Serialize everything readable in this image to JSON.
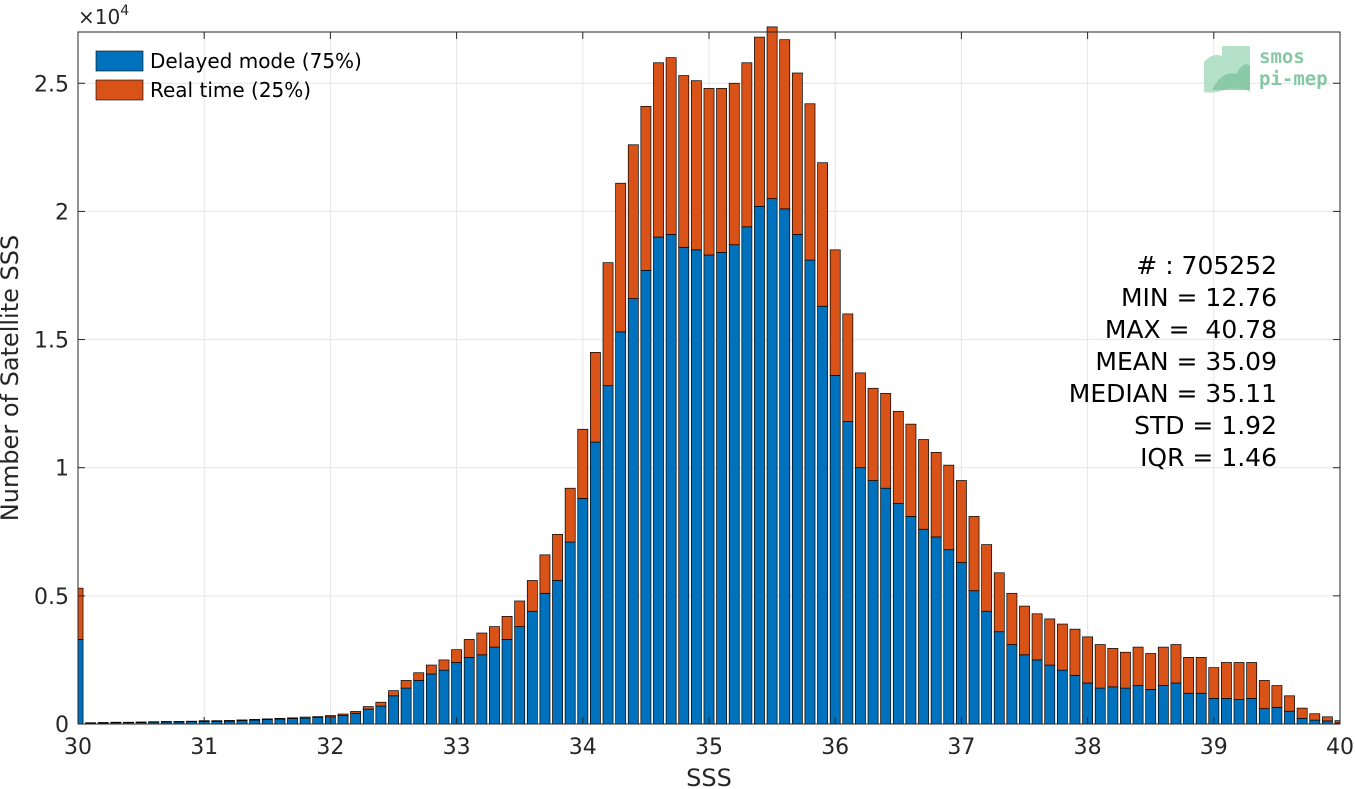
{
  "chart_data": {
    "type": "bar",
    "stacked": true,
    "xlabel": "SSS",
    "ylabel": "Number of Satellite SSS",
    "xlim": [
      30,
      40
    ],
    "ylim": [
      0,
      27000
    ],
    "x_ticks": [
      30,
      31,
      32,
      33,
      34,
      35,
      36,
      37,
      38,
      39,
      40
    ],
    "x_tick_labels": [
      "30",
      "31",
      "32",
      "33",
      "34",
      "35",
      "36",
      "37",
      "38",
      "39",
      "40"
    ],
    "y_ticks": [
      0,
      5000,
      10000,
      15000,
      20000,
      25000
    ],
    "y_tick_labels": [
      "0",
      "0.5",
      "1",
      "1.5",
      "2",
      "2.5"
    ],
    "y_multiplier_label": "×10",
    "y_multiplier_exponent": "4",
    "grid": true,
    "legend_position": "top-left",
    "bin_width": 0.1,
    "x": [
      30.0,
      30.1,
      30.2,
      30.3,
      30.4,
      30.5,
      30.6,
      30.7,
      30.8,
      30.9,
      31.0,
      31.1,
      31.2,
      31.3,
      31.4,
      31.5,
      31.6,
      31.7,
      31.8,
      31.9,
      32.0,
      32.1,
      32.2,
      32.3,
      32.4,
      32.5,
      32.6,
      32.7,
      32.8,
      32.9,
      33.0,
      33.1,
      33.2,
      33.3,
      33.4,
      33.5,
      33.6,
      33.7,
      33.8,
      33.9,
      34.0,
      34.1,
      34.2,
      34.3,
      34.4,
      34.5,
      34.6,
      34.7,
      34.8,
      34.9,
      35.0,
      35.1,
      35.2,
      35.3,
      35.4,
      35.5,
      35.6,
      35.7,
      35.8,
      35.9,
      36.0,
      36.1,
      36.2,
      36.3,
      36.4,
      36.5,
      36.6,
      36.7,
      36.8,
      36.9,
      37.0,
      37.1,
      37.2,
      37.3,
      37.4,
      37.5,
      37.6,
      37.7,
      37.8,
      37.9,
      38.0,
      38.1,
      38.2,
      38.3,
      38.4,
      38.5,
      38.6,
      38.7,
      38.8,
      38.9,
      39.0,
      39.1,
      39.2,
      39.3,
      39.4,
      39.5,
      39.6,
      39.7,
      39.8,
      39.9,
      40.0
    ],
    "series": [
      {
        "name": "Delayed mode (75%)",
        "color": "#0072bd",
        "values": [
          3300,
          30,
          40,
          50,
          50,
          60,
          70,
          80,
          80,
          90,
          100,
          100,
          110,
          130,
          150,
          170,
          190,
          210,
          230,
          250,
          280,
          330,
          420,
          580,
          700,
          1100,
          1400,
          1700,
          1950,
          2100,
          2400,
          2600,
          2700,
          3000,
          3300,
          3800,
          4400,
          5100,
          5600,
          7100,
          8800,
          11000,
          13200,
          15300,
          16600,
          17700,
          19000,
          19100,
          18600,
          18500,
          18300,
          18400,
          18700,
          19400,
          20200,
          20500,
          20100,
          19100,
          18100,
          16300,
          13600,
          11800,
          10000,
          9500,
          9200,
          8600,
          8100,
          7600,
          7300,
          6800,
          6300,
          5200,
          4400,
          3600,
          3100,
          2700,
          2500,
          2300,
          2100,
          1900,
          1600,
          1400,
          1450,
          1400,
          1500,
          1350,
          1500,
          1600,
          1200,
          1200,
          1000,
          1000,
          950,
          1000,
          600,
          650,
          500,
          220,
          150,
          120,
          40
        ]
      },
      {
        "name": "Real time (25%)",
        "color": "#d95319",
        "values": [
          2000,
          20,
          20,
          20,
          20,
          20,
          20,
          20,
          20,
          20,
          30,
          30,
          30,
          30,
          30,
          30,
          30,
          30,
          40,
          40,
          50,
          60,
          70,
          100,
          150,
          200,
          300,
          300,
          350,
          400,
          500,
          700,
          850,
          800,
          900,
          1000,
          1200,
          1500,
          1800,
          2100,
          2700,
          3500,
          4800,
          5800,
          6000,
          6400,
          6800,
          6900,
          6700,
          6600,
          6500,
          6400,
          6300,
          6400,
          6600,
          6700,
          6600,
          6300,
          6100,
          5600,
          4900,
          4200,
          3700,
          3600,
          3700,
          3600,
          3600,
          3500,
          3300,
          3300,
          3200,
          2900,
          2600,
          2300,
          2000,
          1900,
          1800,
          1800,
          1800,
          1800,
          1800,
          1700,
          1500,
          1400,
          1500,
          1400,
          1500,
          1500,
          1400,
          1400,
          1200,
          1400,
          1450,
          1400,
          1100,
          850,
          600,
          400,
          250,
          160,
          90
        ]
      }
    ],
    "stats": {
      "count": "# : 705252",
      "min": "MIN = 12.76",
      "max": "MAX =  40.78",
      "mean": "MEAN = 35.09",
      "median": "MEDIAN = 35.11",
      "std": "STD = 1.92",
      "iqr": "IQR = 1.46"
    }
  },
  "logo": {
    "line1": "smos",
    "line2": "pi-mep"
  }
}
